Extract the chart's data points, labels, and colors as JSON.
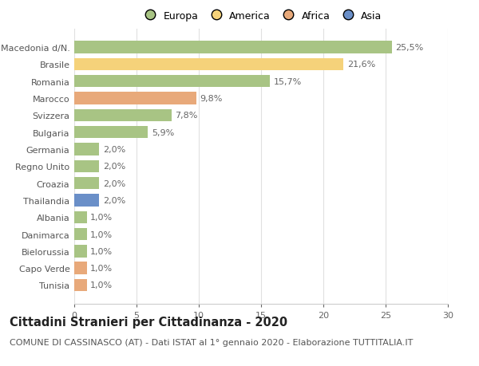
{
  "categories": [
    "Tunisia",
    "Capo Verde",
    "Bielorussia",
    "Danimarca",
    "Albania",
    "Thailandia",
    "Croazia",
    "Regno Unito",
    "Germania",
    "Bulgaria",
    "Svizzera",
    "Marocco",
    "Romania",
    "Brasile",
    "Macedonia d/N."
  ],
  "values": [
    1.0,
    1.0,
    1.0,
    1.0,
    1.0,
    2.0,
    2.0,
    2.0,
    2.0,
    5.9,
    7.8,
    9.8,
    15.7,
    21.6,
    25.5
  ],
  "labels": [
    "1,0%",
    "1,0%",
    "1,0%",
    "1,0%",
    "1,0%",
    "2,0%",
    "2,0%",
    "2,0%",
    "2,0%",
    "5,9%",
    "7,8%",
    "9,8%",
    "15,7%",
    "21,6%",
    "25,5%"
  ],
  "continents": [
    "Africa",
    "Africa",
    "Europa",
    "Europa",
    "Europa",
    "Asia",
    "Europa",
    "Europa",
    "Europa",
    "Europa",
    "Europa",
    "Africa",
    "Europa",
    "America",
    "Europa"
  ],
  "continent_colors": {
    "Europa": "#a8c484",
    "America": "#f5d27a",
    "Africa": "#e8a97a",
    "Asia": "#6a8fc8"
  },
  "legend_labels": [
    "Europa",
    "America",
    "Africa",
    "Asia"
  ],
  "legend_colors": [
    "#a8c484",
    "#f5d27a",
    "#e8a97a",
    "#6a8fc8"
  ],
  "xlim": [
    0,
    30
  ],
  "xticks": [
    0,
    5,
    10,
    15,
    20,
    25,
    30
  ],
  "background_color": "#ffffff",
  "grid_color": "#e0e0e0",
  "title": "Cittadini Stranieri per Cittadinanza - 2020",
  "subtitle": "COMUNE DI CASSINASCO (AT) - Dati ISTAT al 1° gennaio 2020 - Elaborazione TUTTITALIA.IT",
  "title_fontsize": 10.5,
  "subtitle_fontsize": 8,
  "label_fontsize": 8,
  "tick_fontsize": 8,
  "legend_fontsize": 9
}
